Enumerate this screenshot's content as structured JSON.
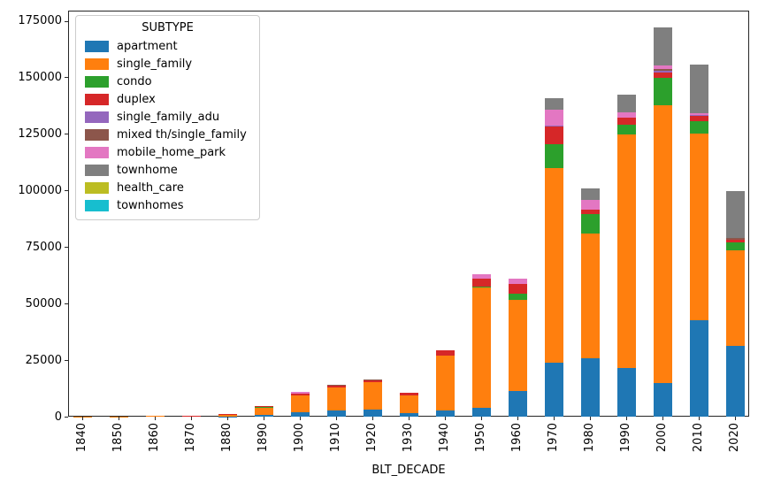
{
  "legend": {
    "title": "SUBTYPE"
  },
  "axes": {
    "xlabel": "BLT_DECADE",
    "ylabel": "",
    "ytick_labels": [
      "0",
      "25000",
      "50000",
      "75000",
      "100000",
      "125000",
      "150000",
      "175000"
    ],
    "ytick_values": [
      0,
      25000,
      50000,
      75000,
      100000,
      125000,
      150000,
      175000
    ]
  },
  "chart_data": {
    "type": "bar",
    "stacked": true,
    "title": "",
    "xlabel": "BLT_DECADE",
    "ylabel": "",
    "ylim": [
      0,
      179500
    ],
    "grid": false,
    "legend_title": "SUBTYPE",
    "legend_position": "upper left",
    "categories": [
      "1840",
      "1850",
      "1860",
      "1870",
      "1880",
      "1890",
      "1900",
      "1910",
      "1920",
      "1930",
      "1940",
      "1950",
      "1960",
      "1970",
      "1980",
      "1990",
      "2000",
      "2010",
      "2020"
    ],
    "series": [
      {
        "name": "apartment",
        "color": "#1f77b4",
        "values": [
          0,
          0,
          0,
          0,
          100,
          600,
          2100,
          2650,
          3250,
          1700,
          2700,
          3900,
          11500,
          24000,
          26000,
          21700,
          14800,
          42600,
          31400
        ]
      },
      {
        "name": "single_family",
        "color": "#ff7f0e",
        "values": [
          100,
          150,
          250,
          450,
          1100,
          3600,
          7400,
          10400,
          11900,
          7800,
          24300,
          53300,
          40000,
          86000,
          55000,
          103000,
          123000,
          82600,
          42200
        ]
      },
      {
        "name": "condo",
        "color": "#2ca02c",
        "values": [
          0,
          0,
          0,
          0,
          0,
          200,
          0,
          0,
          0,
          0,
          0,
          400,
          3000,
          10400,
          8700,
          4500,
          11800,
          5500,
          3600
        ]
      },
      {
        "name": "duplex",
        "color": "#d62728",
        "values": [
          0,
          0,
          0,
          100,
          100,
          300,
          800,
          800,
          1100,
          1000,
          2400,
          3300,
          4300,
          7800,
          1700,
          2900,
          2600,
          2100,
          1000
        ]
      },
      {
        "name": "single_family_adu",
        "color": "#9467bd",
        "values": [
          0,
          0,
          0,
          0,
          0,
          0,
          0,
          0,
          0,
          0,
          0,
          0,
          0,
          600,
          0,
          0,
          600,
          500,
          0
        ]
      },
      {
        "name": "mixed th/single_family",
        "color": "#8c564b",
        "values": [
          0,
          0,
          0,
          0,
          0,
          0,
          0,
          250,
          200,
          0,
          0,
          0,
          0,
          0,
          0,
          0,
          700,
          0,
          800
        ]
      },
      {
        "name": "mobile_home_park",
        "color": "#e377c2",
        "values": [
          0,
          0,
          0,
          0,
          0,
          0,
          500,
          0,
          0,
          0,
          0,
          2000,
          2200,
          6800,
          4600,
          2400,
          1700,
          700,
          0
        ]
      },
      {
        "name": "townhome",
        "color": "#7f7f7f",
        "values": [
          0,
          0,
          0,
          0,
          0,
          0,
          0,
          0,
          0,
          0,
          0,
          0,
          0,
          5000,
          4800,
          7800,
          17000,
          21700,
          20600
        ]
      },
      {
        "name": "health_care",
        "color": "#bcbd22",
        "values": [
          0,
          0,
          0,
          0,
          0,
          0,
          0,
          0,
          0,
          0,
          0,
          0,
          0,
          0,
          0,
          0,
          0,
          0,
          0
        ]
      },
      {
        "name": "townhomes",
        "color": "#17becf",
        "values": [
          0,
          0,
          0,
          0,
          0,
          0,
          0,
          0,
          0,
          0,
          0,
          0,
          0,
          0,
          0,
          0,
          0,
          0,
          0
        ]
      }
    ]
  }
}
